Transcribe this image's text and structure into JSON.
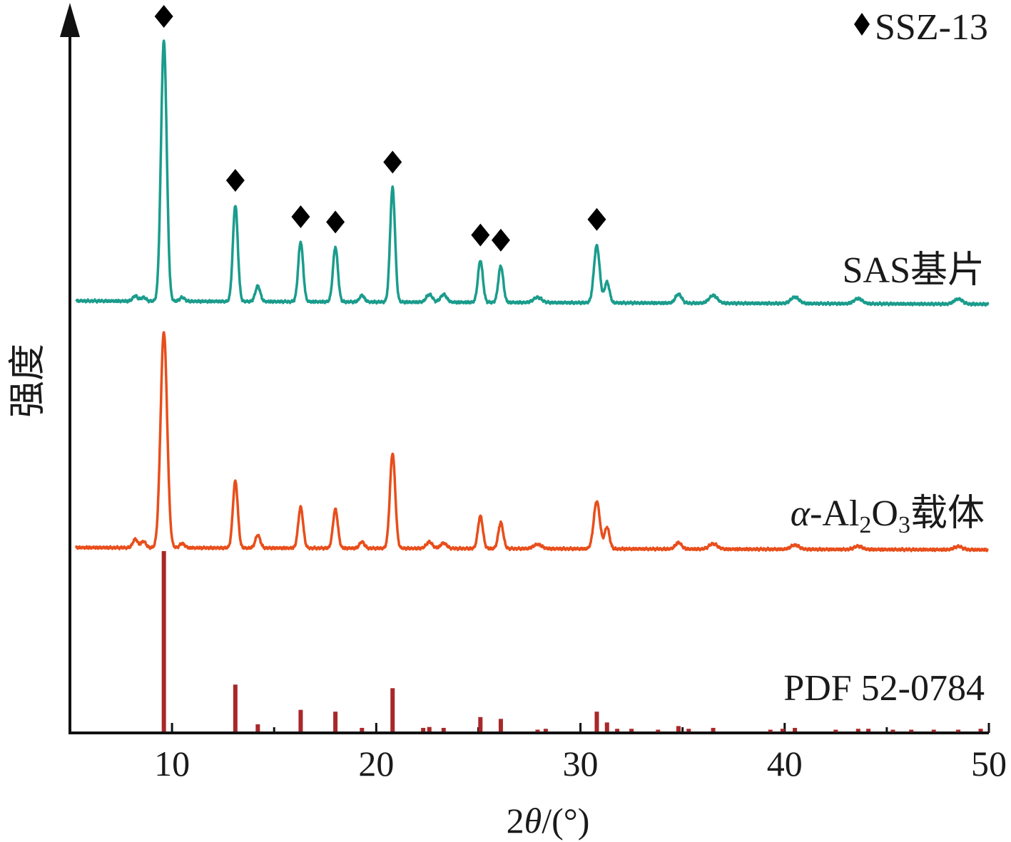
{
  "chart_data": {
    "type": "line",
    "xlabel_prefix": "2",
    "xlabel_theta": "θ",
    "xlabel_suffix": "/(°)",
    "ylabel": "强度",
    "xlim": [
      5,
      50
    ],
    "xticks": [
      10,
      20,
      30,
      40,
      50
    ],
    "xtick_labels": [
      "10",
      "20",
      "30",
      "40",
      "50"
    ],
    "legend": {
      "marker": "diamond",
      "label": "SSZ-13",
      "position": "top-right"
    },
    "series": [
      {
        "name": "SAS基片",
        "color": "#1a9c8c",
        "baseline": 0,
        "peaks": [
          {
            "x": 8.2,
            "h": 0.02,
            "w": 0.12
          },
          {
            "x": 8.6,
            "h": 0.015,
            "w": 0.12
          },
          {
            "x": 9.6,
            "h": 1.0,
            "w": 0.14
          },
          {
            "x": 10.5,
            "h": 0.015,
            "w": 0.12
          },
          {
            "x": 13.1,
            "h": 0.37,
            "w": 0.12
          },
          {
            "x": 14.2,
            "h": 0.06,
            "w": 0.12
          },
          {
            "x": 16.3,
            "h": 0.23,
            "w": 0.12
          },
          {
            "x": 18.0,
            "h": 0.21,
            "w": 0.12
          },
          {
            "x": 19.3,
            "h": 0.025,
            "w": 0.12
          },
          {
            "x": 20.8,
            "h": 0.44,
            "w": 0.12
          },
          {
            "x": 22.6,
            "h": 0.03,
            "w": 0.15
          },
          {
            "x": 23.3,
            "h": 0.03,
            "w": 0.15
          },
          {
            "x": 25.1,
            "h": 0.16,
            "w": 0.12
          },
          {
            "x": 26.1,
            "h": 0.14,
            "w": 0.12
          },
          {
            "x": 27.9,
            "h": 0.02,
            "w": 0.2
          },
          {
            "x": 30.8,
            "h": 0.22,
            "w": 0.14
          },
          {
            "x": 31.3,
            "h": 0.08,
            "w": 0.12
          },
          {
            "x": 34.8,
            "h": 0.035,
            "w": 0.15
          },
          {
            "x": 36.5,
            "h": 0.03,
            "w": 0.2
          },
          {
            "x": 40.5,
            "h": 0.025,
            "w": 0.2
          },
          {
            "x": 43.6,
            "h": 0.02,
            "w": 0.2
          },
          {
            "x": 48.5,
            "h": 0.02,
            "w": 0.2
          }
        ],
        "marked_peaks": [
          9.6,
          13.1,
          16.3,
          18.0,
          20.8,
          25.1,
          26.1,
          30.8
        ]
      },
      {
        "name": "α-Al₂O₃载体",
        "label_parts": [
          "α",
          "-Al",
          "2",
          "O",
          "3",
          "载体"
        ],
        "color": "#e84e1b",
        "baseline": 0,
        "peaks": [
          {
            "x": 8.2,
            "h": 0.04,
            "w": 0.12
          },
          {
            "x": 8.6,
            "h": 0.03,
            "w": 0.12
          },
          {
            "x": 9.6,
            "h": 1.0,
            "w": 0.16
          },
          {
            "x": 10.5,
            "h": 0.02,
            "w": 0.12
          },
          {
            "x": 13.1,
            "h": 0.31,
            "w": 0.12
          },
          {
            "x": 14.2,
            "h": 0.06,
            "w": 0.12
          },
          {
            "x": 16.3,
            "h": 0.19,
            "w": 0.12
          },
          {
            "x": 18.0,
            "h": 0.18,
            "w": 0.12
          },
          {
            "x": 19.3,
            "h": 0.03,
            "w": 0.12
          },
          {
            "x": 20.8,
            "h": 0.44,
            "w": 0.13
          },
          {
            "x": 22.6,
            "h": 0.03,
            "w": 0.15
          },
          {
            "x": 23.3,
            "h": 0.025,
            "w": 0.15
          },
          {
            "x": 25.1,
            "h": 0.15,
            "w": 0.12
          },
          {
            "x": 26.1,
            "h": 0.12,
            "w": 0.12
          },
          {
            "x": 27.9,
            "h": 0.02,
            "w": 0.2
          },
          {
            "x": 30.8,
            "h": 0.22,
            "w": 0.15
          },
          {
            "x": 31.3,
            "h": 0.1,
            "w": 0.12
          },
          {
            "x": 34.8,
            "h": 0.03,
            "w": 0.15
          },
          {
            "x": 36.5,
            "h": 0.025,
            "w": 0.2
          },
          {
            "x": 40.5,
            "h": 0.02,
            "w": 0.2
          },
          {
            "x": 43.6,
            "h": 0.015,
            "w": 0.2
          },
          {
            "x": 48.5,
            "h": 0.015,
            "w": 0.2
          }
        ]
      },
      {
        "name": "PDF 52-0784",
        "type": "stick",
        "color": "#a8282a",
        "sticks": [
          {
            "x": 9.6,
            "y": 1.0
          },
          {
            "x": 13.1,
            "y": 0.26
          },
          {
            "x": 14.2,
            "y": 0.04
          },
          {
            "x": 16.3,
            "y": 0.12
          },
          {
            "x": 18.0,
            "y": 0.11
          },
          {
            "x": 19.3,
            "y": 0.02
          },
          {
            "x": 20.8,
            "y": 0.24
          },
          {
            "x": 22.3,
            "y": 0.02
          },
          {
            "x": 22.6,
            "y": 0.025
          },
          {
            "x": 23.3,
            "y": 0.02
          },
          {
            "x": 25.1,
            "y": 0.08
          },
          {
            "x": 26.1,
            "y": 0.07
          },
          {
            "x": 27.9,
            "y": 0.01
          },
          {
            "x": 28.3,
            "y": 0.015
          },
          {
            "x": 30.8,
            "y": 0.11
          },
          {
            "x": 31.3,
            "y": 0.05
          },
          {
            "x": 31.8,
            "y": 0.015
          },
          {
            "x": 32.5,
            "y": 0.015
          },
          {
            "x": 33.8,
            "y": 0.01
          },
          {
            "x": 34.8,
            "y": 0.03
          },
          {
            "x": 35.3,
            "y": 0.015
          },
          {
            "x": 36.5,
            "y": 0.02
          },
          {
            "x": 39.3,
            "y": 0.01
          },
          {
            "x": 39.9,
            "y": 0.015
          },
          {
            "x": 40.5,
            "y": 0.02
          },
          {
            "x": 42.5,
            "y": 0.01
          },
          {
            "x": 43.6,
            "y": 0.015
          },
          {
            "x": 44.1,
            "y": 0.015
          },
          {
            "x": 45.3,
            "y": 0.01
          },
          {
            "x": 46.2,
            "y": 0.01
          },
          {
            "x": 47.3,
            "y": 0.01
          },
          {
            "x": 48.5,
            "y": 0.01
          },
          {
            "x": 49.6,
            "y": 0.015
          }
        ]
      }
    ]
  }
}
